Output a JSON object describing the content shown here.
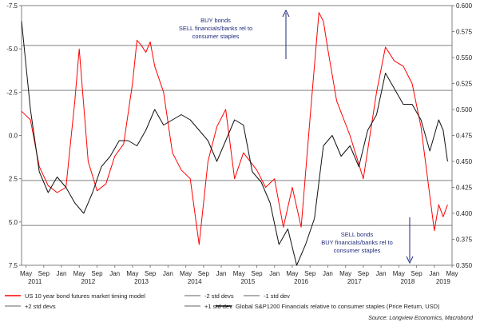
{
  "chart_data": {
    "type": "line",
    "source": "Source: Longview Economics, Macrobond",
    "annotations": [
      {
        "lines": [
          "BUY bonds",
          "SELL financials/banks rel to",
          "consumer staples"
        ],
        "arrow": "up"
      },
      {
        "lines": [
          "SELL bonds",
          "BUY financials/banks rel to",
          "consumer staples"
        ],
        "arrow": "down"
      }
    ],
    "left_axis": {
      "ticks": [
        -7.5,
        -5.0,
        -2.5,
        0.0,
        2.5,
        5.0,
        7.5
      ],
      "tick_labels": [
        "-7.5",
        "-5.0",
        "-2.5",
        "0.0",
        "2.5",
        "5.0",
        "7.5"
      ],
      "range": [
        -7.5,
        7.5
      ],
      "inverted": true
    },
    "right_axis": {
      "ticks": [
        0.35,
        0.375,
        0.4,
        0.425,
        0.45,
        0.475,
        0.5,
        0.525,
        0.55,
        0.575,
        0.6
      ],
      "tick_labels": [
        "0.350",
        "0.375",
        "0.400",
        "0.425",
        "0.450",
        "0.475",
        "0.500",
        "0.525",
        "0.550",
        "0.575",
        "0.600"
      ],
      "range": [
        0.35,
        0.6
      ]
    },
    "x_axis": {
      "range": [
        "2011-04",
        "2019-05"
      ],
      "month_ticks": [
        {
          "date": "2011-05",
          "label": "May"
        },
        {
          "date": "2011-09",
          "label": "Sep"
        },
        {
          "date": "2012-01",
          "label": "Jan"
        },
        {
          "date": "2012-05",
          "label": "May"
        },
        {
          "date": "2012-09",
          "label": "Sep"
        },
        {
          "date": "2013-01",
          "label": "Jan"
        },
        {
          "date": "2013-05",
          "label": "May"
        },
        {
          "date": "2013-09",
          "label": "Sep"
        },
        {
          "date": "2014-01",
          "label": "Jan"
        },
        {
          "date": "2014-05",
          "label": "May"
        },
        {
          "date": "2014-09",
          "label": "Sep"
        },
        {
          "date": "2015-01",
          "label": "Jan"
        },
        {
          "date": "2015-05",
          "label": "May"
        },
        {
          "date": "2015-09",
          "label": "Sep"
        },
        {
          "date": "2016-01",
          "label": "Jan"
        },
        {
          "date": "2016-05",
          "label": "May"
        },
        {
          "date": "2016-09",
          "label": "Sep"
        },
        {
          "date": "2017-01",
          "label": "Jan"
        },
        {
          "date": "2017-05",
          "label": "May"
        },
        {
          "date": "2017-09",
          "label": "Sep"
        },
        {
          "date": "2018-01",
          "label": "Jan"
        },
        {
          "date": "2018-05",
          "label": "May"
        },
        {
          "date": "2018-09",
          "label": "Sep"
        },
        {
          "date": "2019-01",
          "label": "Jan"
        },
        {
          "date": "2019-05",
          "label": "May"
        }
      ],
      "year_labels": [
        {
          "date": "2011-07",
          "label": "2011"
        },
        {
          "date": "2012-07",
          "label": "2012"
        },
        {
          "date": "2013-07",
          "label": "2013"
        },
        {
          "date": "2014-07",
          "label": "2014"
        },
        {
          "date": "2015-07",
          "label": "2015"
        },
        {
          "date": "2016-07",
          "label": "2016"
        },
        {
          "date": "2017-07",
          "label": "2017"
        },
        {
          "date": "2018-07",
          "label": "2018"
        },
        {
          "date": "2019-03",
          "label": "2019"
        }
      ]
    },
    "reference_lines": [
      {
        "name": "-2 std devs",
        "value": -5.2,
        "color": "#808080"
      },
      {
        "name": "-1 std dev",
        "value": -2.6,
        "color": "#808080"
      },
      {
        "name": "+2 std devs",
        "value": 5.2,
        "color": "#808080"
      },
      {
        "name": "+1 std dev",
        "value": 2.6,
        "color": "#808080"
      }
    ],
    "series": [
      {
        "name": "US 10 year bond futures market timing model",
        "axis": "left",
        "color": "#ff0000",
        "points": [
          [
            "2011-04",
            -1.4
          ],
          [
            "2011-06",
            -0.9
          ],
          [
            "2011-08",
            1.8
          ],
          [
            "2011-10",
            2.9
          ],
          [
            "2011-12",
            3.3
          ],
          [
            "2012-02",
            3.0
          ],
          [
            "2012-04",
            -2.0
          ],
          [
            "2012-05",
            -5.0
          ],
          [
            "2012-07",
            1.5
          ],
          [
            "2012-09",
            3.2
          ],
          [
            "2012-11",
            2.8
          ],
          [
            "2013-01",
            1.2
          ],
          [
            "2013-03",
            0.5
          ],
          [
            "2013-05",
            -3.0
          ],
          [
            "2013-06",
            -5.5
          ],
          [
            "2013-07",
            -5.2
          ],
          [
            "2013-08",
            -4.8
          ],
          [
            "2013-09",
            -5.4
          ],
          [
            "2013-10",
            -4.0
          ],
          [
            "2013-12",
            -2.5
          ],
          [
            "2014-02",
            1.0
          ],
          [
            "2014-04",
            2.0
          ],
          [
            "2014-06",
            2.5
          ],
          [
            "2014-08",
            6.3
          ],
          [
            "2014-10",
            1.5
          ],
          [
            "2014-12",
            -0.5
          ],
          [
            "2015-02",
            -1.5
          ],
          [
            "2015-04",
            2.5
          ],
          [
            "2015-06",
            1.0
          ],
          [
            "2015-09",
            2.0
          ],
          [
            "2015-11",
            3.0
          ],
          [
            "2016-01",
            2.5
          ],
          [
            "2016-03",
            5.3
          ],
          [
            "2016-05",
            3.0
          ],
          [
            "2016-07",
            5.3
          ],
          [
            "2016-09",
            -1.0
          ],
          [
            "2016-11",
            -7.1
          ],
          [
            "2016-12",
            -6.6
          ],
          [
            "2017-01",
            -5.0
          ],
          [
            "2017-03",
            -2.0
          ],
          [
            "2017-06",
            0.0
          ],
          [
            "2017-09",
            2.5
          ],
          [
            "2017-12",
            -2.5
          ],
          [
            "2018-02",
            -5.1
          ],
          [
            "2018-04",
            -4.3
          ],
          [
            "2018-06",
            -4.0
          ],
          [
            "2018-08",
            -3.0
          ],
          [
            "2018-10",
            -0.5
          ],
          [
            "2018-12",
            3.5
          ],
          [
            "2019-01",
            5.5
          ],
          [
            "2019-02",
            4.0
          ],
          [
            "2019-03",
            4.7
          ],
          [
            "2019-04",
            4.0
          ]
        ]
      },
      {
        "name": "Global S&P1200 Financials relative to consumer staples (Price Return, USD)",
        "axis": "right",
        "color": "#111111",
        "points": [
          [
            "2011-04",
            0.585
          ],
          [
            "2011-06",
            0.5
          ],
          [
            "2011-08",
            0.44
          ],
          [
            "2011-10",
            0.42
          ],
          [
            "2011-12",
            0.435
          ],
          [
            "2012-02",
            0.425
          ],
          [
            "2012-04",
            0.41
          ],
          [
            "2012-06",
            0.4
          ],
          [
            "2012-08",
            0.42
          ],
          [
            "2012-10",
            0.445
          ],
          [
            "2012-12",
            0.455
          ],
          [
            "2013-02",
            0.47
          ],
          [
            "2013-04",
            0.47
          ],
          [
            "2013-06",
            0.465
          ],
          [
            "2013-08",
            0.48
          ],
          [
            "2013-10",
            0.5
          ],
          [
            "2013-12",
            0.485
          ],
          [
            "2014-02",
            0.49
          ],
          [
            "2014-04",
            0.495
          ],
          [
            "2014-06",
            0.49
          ],
          [
            "2014-08",
            0.48
          ],
          [
            "2014-10",
            0.47
          ],
          [
            "2014-12",
            0.45
          ],
          [
            "2015-02",
            0.47
          ],
          [
            "2015-04",
            0.49
          ],
          [
            "2015-06",
            0.485
          ],
          [
            "2015-08",
            0.44
          ],
          [
            "2015-10",
            0.43
          ],
          [
            "2015-12",
            0.41
          ],
          [
            "2016-02",
            0.37
          ],
          [
            "2016-04",
            0.385
          ],
          [
            "2016-06",
            0.35
          ],
          [
            "2016-08",
            0.37
          ],
          [
            "2016-10",
            0.395
          ],
          [
            "2016-12",
            0.465
          ],
          [
            "2017-02",
            0.475
          ],
          [
            "2017-04",
            0.455
          ],
          [
            "2017-06",
            0.465
          ],
          [
            "2017-08",
            0.445
          ],
          [
            "2017-10",
            0.48
          ],
          [
            "2017-12",
            0.495
          ],
          [
            "2018-02",
            0.535
          ],
          [
            "2018-04",
            0.52
          ],
          [
            "2018-06",
            0.505
          ],
          [
            "2018-08",
            0.505
          ],
          [
            "2018-10",
            0.49
          ],
          [
            "2018-12",
            0.46
          ],
          [
            "2019-02",
            0.49
          ],
          [
            "2019-03",
            0.48
          ],
          [
            "2019-04",
            0.45
          ]
        ]
      }
    ],
    "legend": {
      "placement": "bottom",
      "entries": [
        {
          "label": "US 10 year bond futures market timing model",
          "color": "#ff0000"
        },
        {
          "label": "-2 std devs",
          "color": "#808080"
        },
        {
          "label": "-1 std dev",
          "color": "#808080"
        },
        {
          "label": "+2 std devs",
          "color": "#808080"
        },
        {
          "label": "+1 std dev",
          "color": "#808080"
        },
        {
          "label": "Global S&P1200 Financials relative to consumer staples (Price Return, USD)",
          "color": "#111111"
        }
      ]
    },
    "colors": {
      "axis": "#808080",
      "arrow": "#1f2a7a"
    }
  }
}
